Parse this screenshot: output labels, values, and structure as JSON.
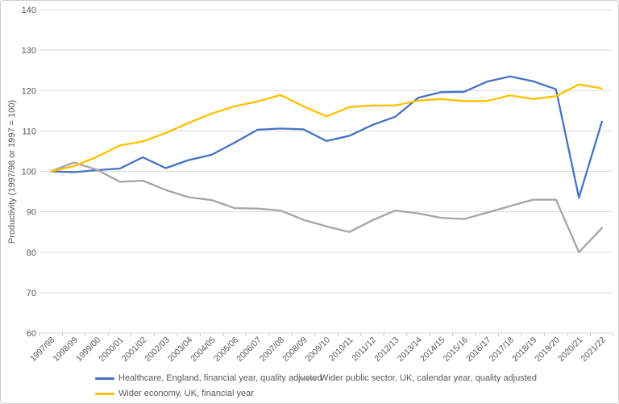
{
  "chart_data": {
    "type": "line",
    "title": "",
    "xlabel": "",
    "ylabel": "Productivity (1997/98 or 1997 = 100)",
    "ylim": [
      60,
      140
    ],
    "ytick_step": 10,
    "grid": "horizontal",
    "legend_position": "bottom",
    "categories": [
      "1997/98",
      "1998/99",
      "1999/00",
      "2000/01",
      "2001/02",
      "2002/03",
      "2003/04",
      "2004/05",
      "2005/06",
      "2006/07",
      "2007/08",
      "2008/09",
      "2009/10",
      "2010/11",
      "2011/12",
      "2012/13",
      "2013/14",
      "2014/15",
      "2015/16",
      "2016/17",
      "2017/18",
      "2018/19",
      "2019/20",
      "2020/21",
      "2021/22"
    ],
    "series": [
      {
        "name": "Healthcare, England, financial year, quality adjusted",
        "color": "#4472C4",
        "values": [
          100,
          99.8,
          100.3,
          100.7,
          103.5,
          100.8,
          102.8,
          104.1,
          107.1,
          110.3,
          110.6,
          110.4,
          107.5,
          108.8,
          111.5,
          113.5,
          118.2,
          119.6,
          119.7,
          122.2,
          123.5,
          122.3,
          120.3,
          93.5,
          112.3
        ]
      },
      {
        "name": "Wider public sector, UK, calendar year, quality adjusted",
        "color": "#A5A5A5",
        "values": [
          100,
          102.2,
          100.4,
          97.4,
          97.7,
          95.4,
          93.6,
          92.9,
          90.9,
          90.8,
          90.3,
          88.0,
          86.4,
          85.0,
          87.9,
          90.3,
          89.6,
          88.5,
          88.2,
          89.8,
          91.4,
          93.0,
          93.0,
          80.0,
          86.0
        ]
      },
      {
        "name": "Wider economy, UK, financial year",
        "color": "#FFC000",
        "values": [
          100,
          101.3,
          103.6,
          106.4,
          107.4,
          109.5,
          112.0,
          114.3,
          116.1,
          117.3,
          118.9,
          116.1,
          113.6,
          115.9,
          116.3,
          116.3,
          117.5,
          117.9,
          117.4,
          117.4,
          118.8,
          117.9,
          118.6,
          121.5,
          120.5
        ]
      }
    ],
    "colors": {
      "grid": "#D9D9D9",
      "tick": "#C9C9C9",
      "axis_text": "#595959",
      "legend_text": "#595959",
      "background": "#FFFFFF",
      "frame_border": "#CFCFCF"
    }
  }
}
